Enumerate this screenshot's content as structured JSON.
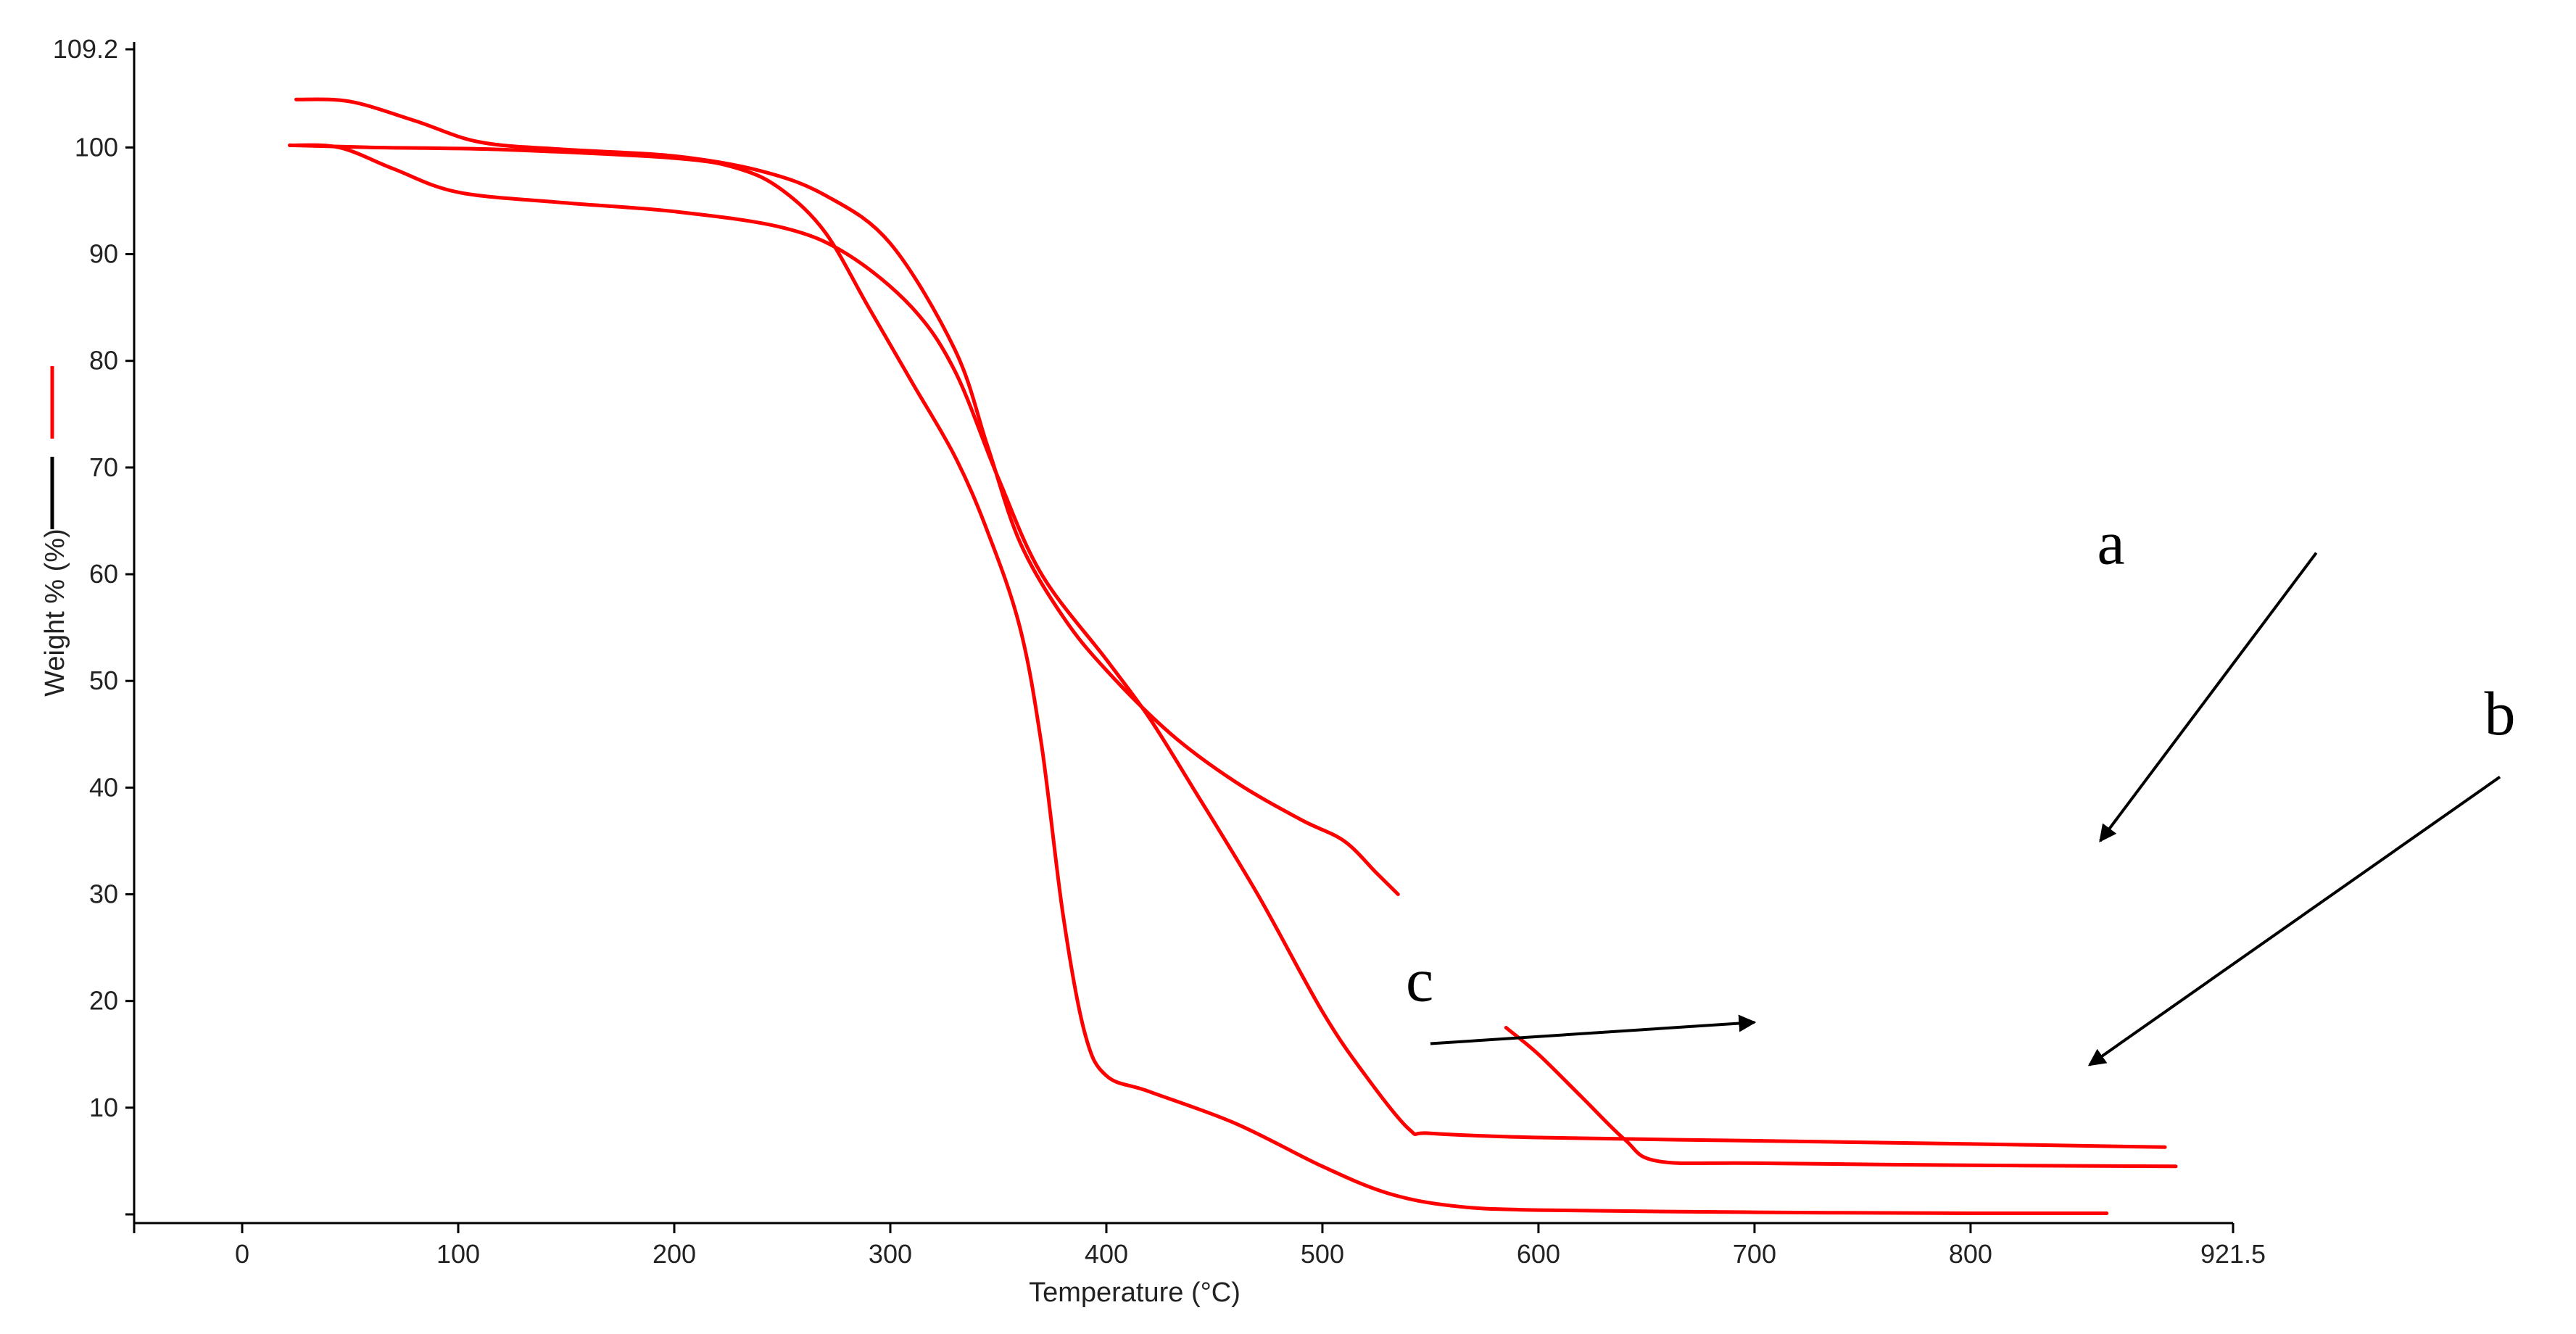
{
  "chart_data": {
    "type": "line",
    "xlabel": "Temperature (°C)",
    "ylabel": "Weight % (%)",
    "xlim": [
      -50,
      921.5
    ],
    "ylim": [
      0,
      109.2
    ],
    "x_ticks": [
      0,
      100,
      200,
      300,
      400,
      500,
      600,
      700,
      800,
      921.5
    ],
    "x_tick_labels": [
      "0",
      "100",
      "200",
      "300",
      "400",
      "500",
      "600",
      "700",
      "800",
      "921.5"
    ],
    "y_ticks": [
      10,
      20,
      30,
      40,
      50,
      60,
      70,
      80,
      90,
      100,
      109.2
    ],
    "y_tick_labels": [
      "10",
      "20",
      "30",
      "40",
      "50",
      "60",
      "70",
      "80",
      "90",
      "100",
      "109.2"
    ],
    "grid": false,
    "line_color": "#ff0000",
    "series": [
      {
        "values": [
          [
            25,
            104.5
          ],
          [
            50,
            104.3
          ],
          [
            80,
            102.5
          ],
          [
            110,
            100.5
          ],
          [
            150,
            99.8
          ],
          [
            200,
            99.2
          ],
          [
            240,
            97.8
          ],
          [
            270,
            95.5
          ],
          [
            300,
            91
          ],
          [
            330,
            81
          ],
          [
            345,
            72
          ],
          [
            360,
            63
          ],
          [
            380,
            56
          ],
          [
            400,
            51
          ],
          [
            430,
            45
          ],
          [
            460,
            40.5
          ],
          [
            490,
            37
          ],
          [
            510,
            35
          ],
          [
            525,
            32
          ],
          [
            535,
            30
          ]
        ]
      },
      {
        "values": [
          [
            22,
            100.2
          ],
          [
            60,
            100
          ],
          [
            120,
            99.8
          ],
          [
            200,
            99
          ],
          [
            230,
            98
          ],
          [
            250,
            96
          ],
          [
            270,
            92
          ],
          [
            290,
            85
          ],
          [
            310,
            78
          ],
          [
            330,
            71
          ],
          [
            345,
            64
          ],
          [
            360,
            55
          ],
          [
            370,
            44
          ],
          [
            380,
            28
          ],
          [
            390,
            17
          ],
          [
            400,
            13
          ],
          [
            420,
            11.5
          ],
          [
            460,
            8.5
          ],
          [
            500,
            4.5
          ],
          [
            530,
            2
          ],
          [
            560,
            0.8
          ],
          [
            600,
            0.4
          ],
          [
            700,
            0.2
          ],
          [
            800,
            0.1
          ],
          [
            863,
            0.1
          ]
        ]
      },
      {
        "values": [
          [
            22,
            100.2
          ],
          [
            45,
            100
          ],
          [
            70,
            98
          ],
          [
            100,
            95.8
          ],
          [
            150,
            94.8
          ],
          [
            200,
            94
          ],
          [
            250,
            92.5
          ],
          [
            280,
            90
          ],
          [
            310,
            85
          ],
          [
            330,
            79
          ],
          [
            350,
            69
          ],
          [
            370,
            60
          ],
          [
            400,
            52
          ],
          [
            420,
            46.5
          ],
          [
            440,
            40
          ],
          [
            470,
            30
          ],
          [
            500,
            19
          ],
          [
            520,
            13
          ],
          [
            540,
            8
          ],
          [
            550,
            7.6
          ],
          [
            600,
            7.2
          ],
          [
            700,
            6.9
          ],
          [
            800,
            6.6
          ],
          [
            890,
            6.3
          ]
        ]
      },
      {
        "values": [
          [
            585,
            17.5
          ],
          [
            600,
            15
          ],
          [
            620,
            11
          ],
          [
            640,
            7
          ],
          [
            655,
            5
          ],
          [
            700,
            4.8
          ],
          [
            800,
            4.6
          ],
          [
            895,
            4.5
          ]
        ]
      }
    ],
    "annotations": [
      {
        "text": "a",
        "x": 865,
        "y": 61
      },
      {
        "text": "b",
        "x": 1045,
        "y": 45
      },
      {
        "text": "c",
        "x": 545,
        "y": 20
      }
    ],
    "arrows": [
      {
        "from": [
          960,
          62
        ],
        "to": [
          860,
          35
        ]
      },
      {
        "from": [
          1045,
          41
        ],
        "to": [
          855,
          14
        ]
      },
      {
        "from": [
          550,
          16
        ],
        "to": [
          700,
          18
        ]
      }
    ],
    "legend": {
      "position": "left-middle",
      "colors": [
        "#ff0000",
        "#000000"
      ]
    }
  }
}
